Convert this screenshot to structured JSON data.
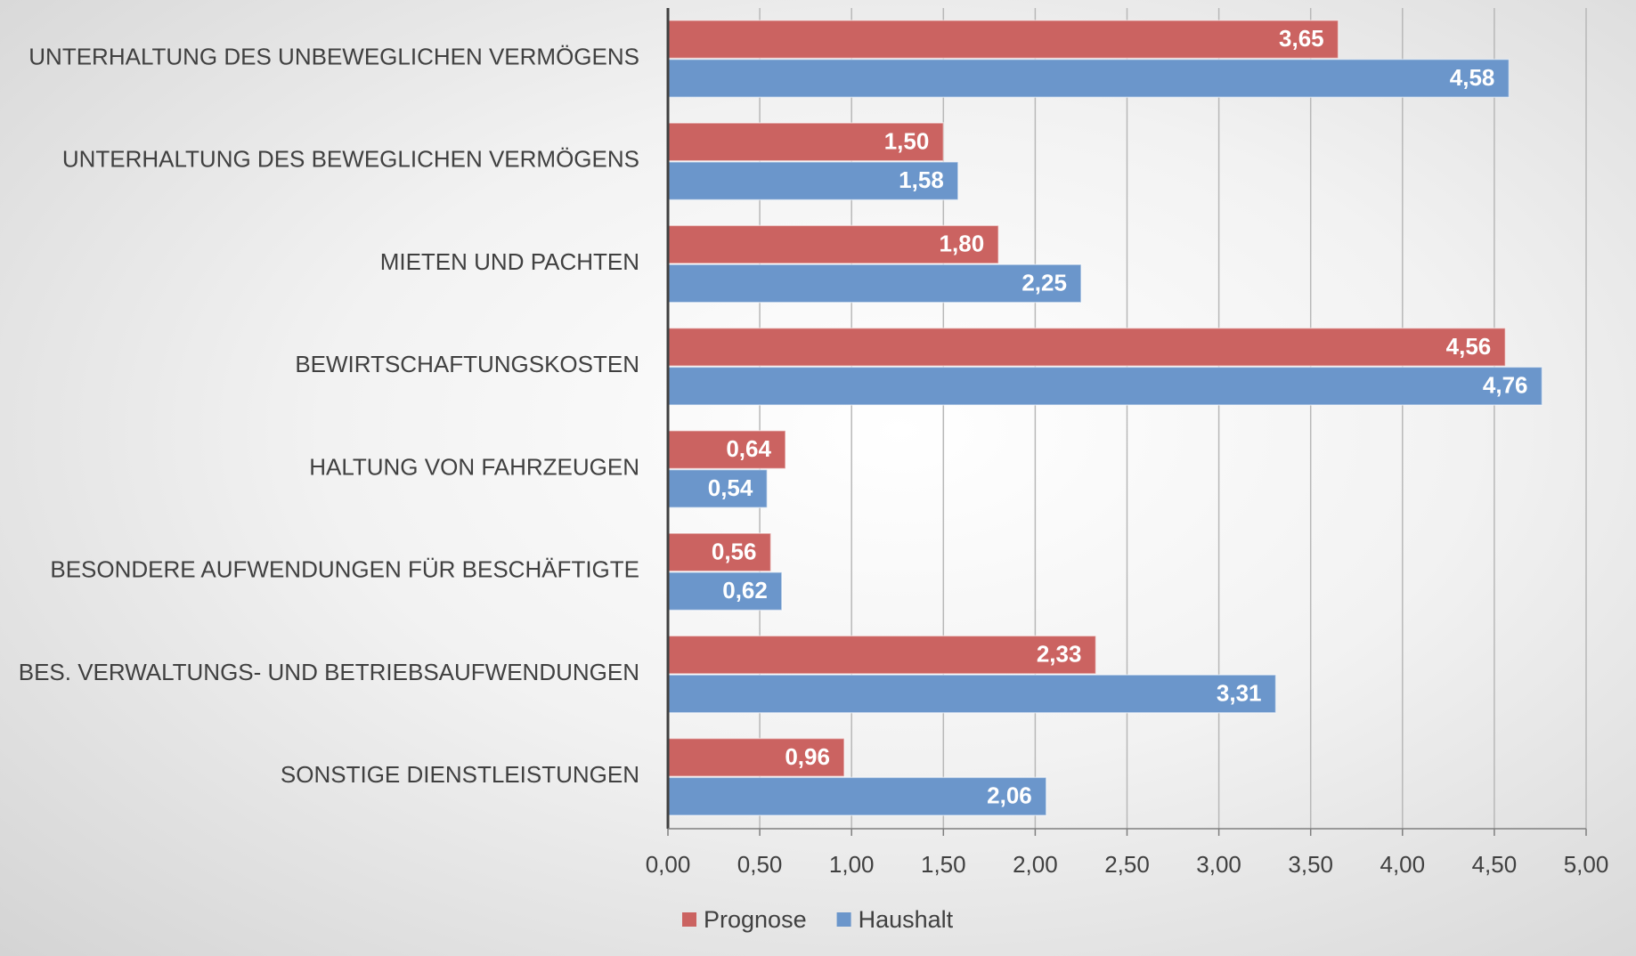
{
  "chart_data": {
    "type": "barh",
    "categories": [
      "UNTERHALTUNG DES UNBEWEGLICHEN VERMÖGENS",
      "UNTERHALTUNG DES BEWEGLICHEN VERMÖGENS",
      "MIETEN UND PACHTEN",
      "BEWIRTSCHAFTUNGSKOSTEN",
      "HALTUNG VON FAHRZEUGEN",
      "BESONDERE AUFWENDUNGEN FÜR BESCHÄFTIGTE",
      "BES. VERWALTUNGS- UND BETRIEBSAUFWENDUNGEN",
      "SONSTIGE DIENSTLEISTUNGEN"
    ],
    "series": [
      {
        "name": "Prognose",
        "color": "#cb6361",
        "values": [
          3.65,
          1.5,
          1.8,
          4.56,
          0.64,
          0.56,
          2.33,
          0.96
        ],
        "value_labels": [
          "3,65",
          "1,50",
          "1,80",
          "4,56",
          "0,64",
          "0,56",
          "2,33",
          "0,96"
        ]
      },
      {
        "name": "Haushalt",
        "color": "#6b96cb",
        "values": [
          4.58,
          1.58,
          2.25,
          4.76,
          0.54,
          0.62,
          3.31,
          2.06
        ],
        "value_labels": [
          "4,58",
          "1,58",
          "2,25",
          "4,76",
          "0,54",
          "0,62",
          "3,31",
          "2,06"
        ]
      }
    ],
    "xlim": [
      0,
      5
    ],
    "xticks": [
      {
        "value": 0,
        "label": "0,00"
      },
      {
        "value": 0.5,
        "label": "0,50"
      },
      {
        "value": 1,
        "label": "1,00"
      },
      {
        "value": 1.5,
        "label": "1,50"
      },
      {
        "value": 2,
        "label": "2,00"
      },
      {
        "value": 2.5,
        "label": "2,50"
      },
      {
        "value": 3,
        "label": "3,00"
      },
      {
        "value": 3.5,
        "label": "3,50"
      },
      {
        "value": 4,
        "label": "4,00"
      },
      {
        "value": 4.5,
        "label": "4,50"
      },
      {
        "value": 5,
        "label": "5,00"
      }
    ],
    "grid": true,
    "legend": "bottom"
  }
}
